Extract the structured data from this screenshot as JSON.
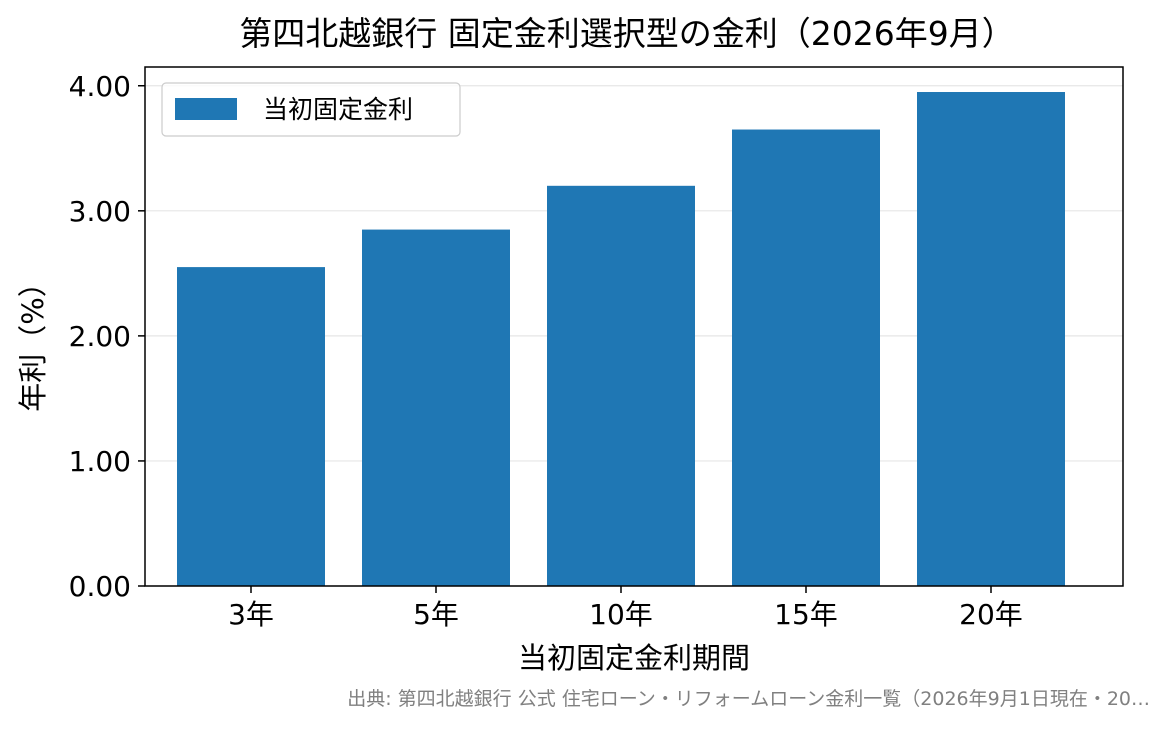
{
  "chart_data": {
    "type": "bar",
    "title": "第四北越銀行 固定金利選択型の金利（2026年9月）",
    "xlabel": "当初固定金利期間",
    "ylabel": "年利（%）",
    "categories": [
      "3年",
      "5年",
      "10年",
      "15年",
      "20年"
    ],
    "series": [
      {
        "name": "当初固定金利",
        "values": [
          2.55,
          2.85,
          3.2,
          3.65,
          3.95
        ]
      }
    ],
    "ylim": [
      0,
      4.15
    ],
    "yticks": [
      "0.00",
      "1.00",
      "2.00",
      "3.00",
      "4.00"
    ],
    "grid": "horizontal",
    "legend": "top-left",
    "source_note": "出典: 第四北越銀行 公式 住宅ローン・リフォームローン金利一覧（2026年9月1日現在・20…",
    "colors": {
      "bar": "#1f77b4",
      "grid": "#e6e6e6",
      "axis": "#000000",
      "note": "#808080"
    }
  }
}
